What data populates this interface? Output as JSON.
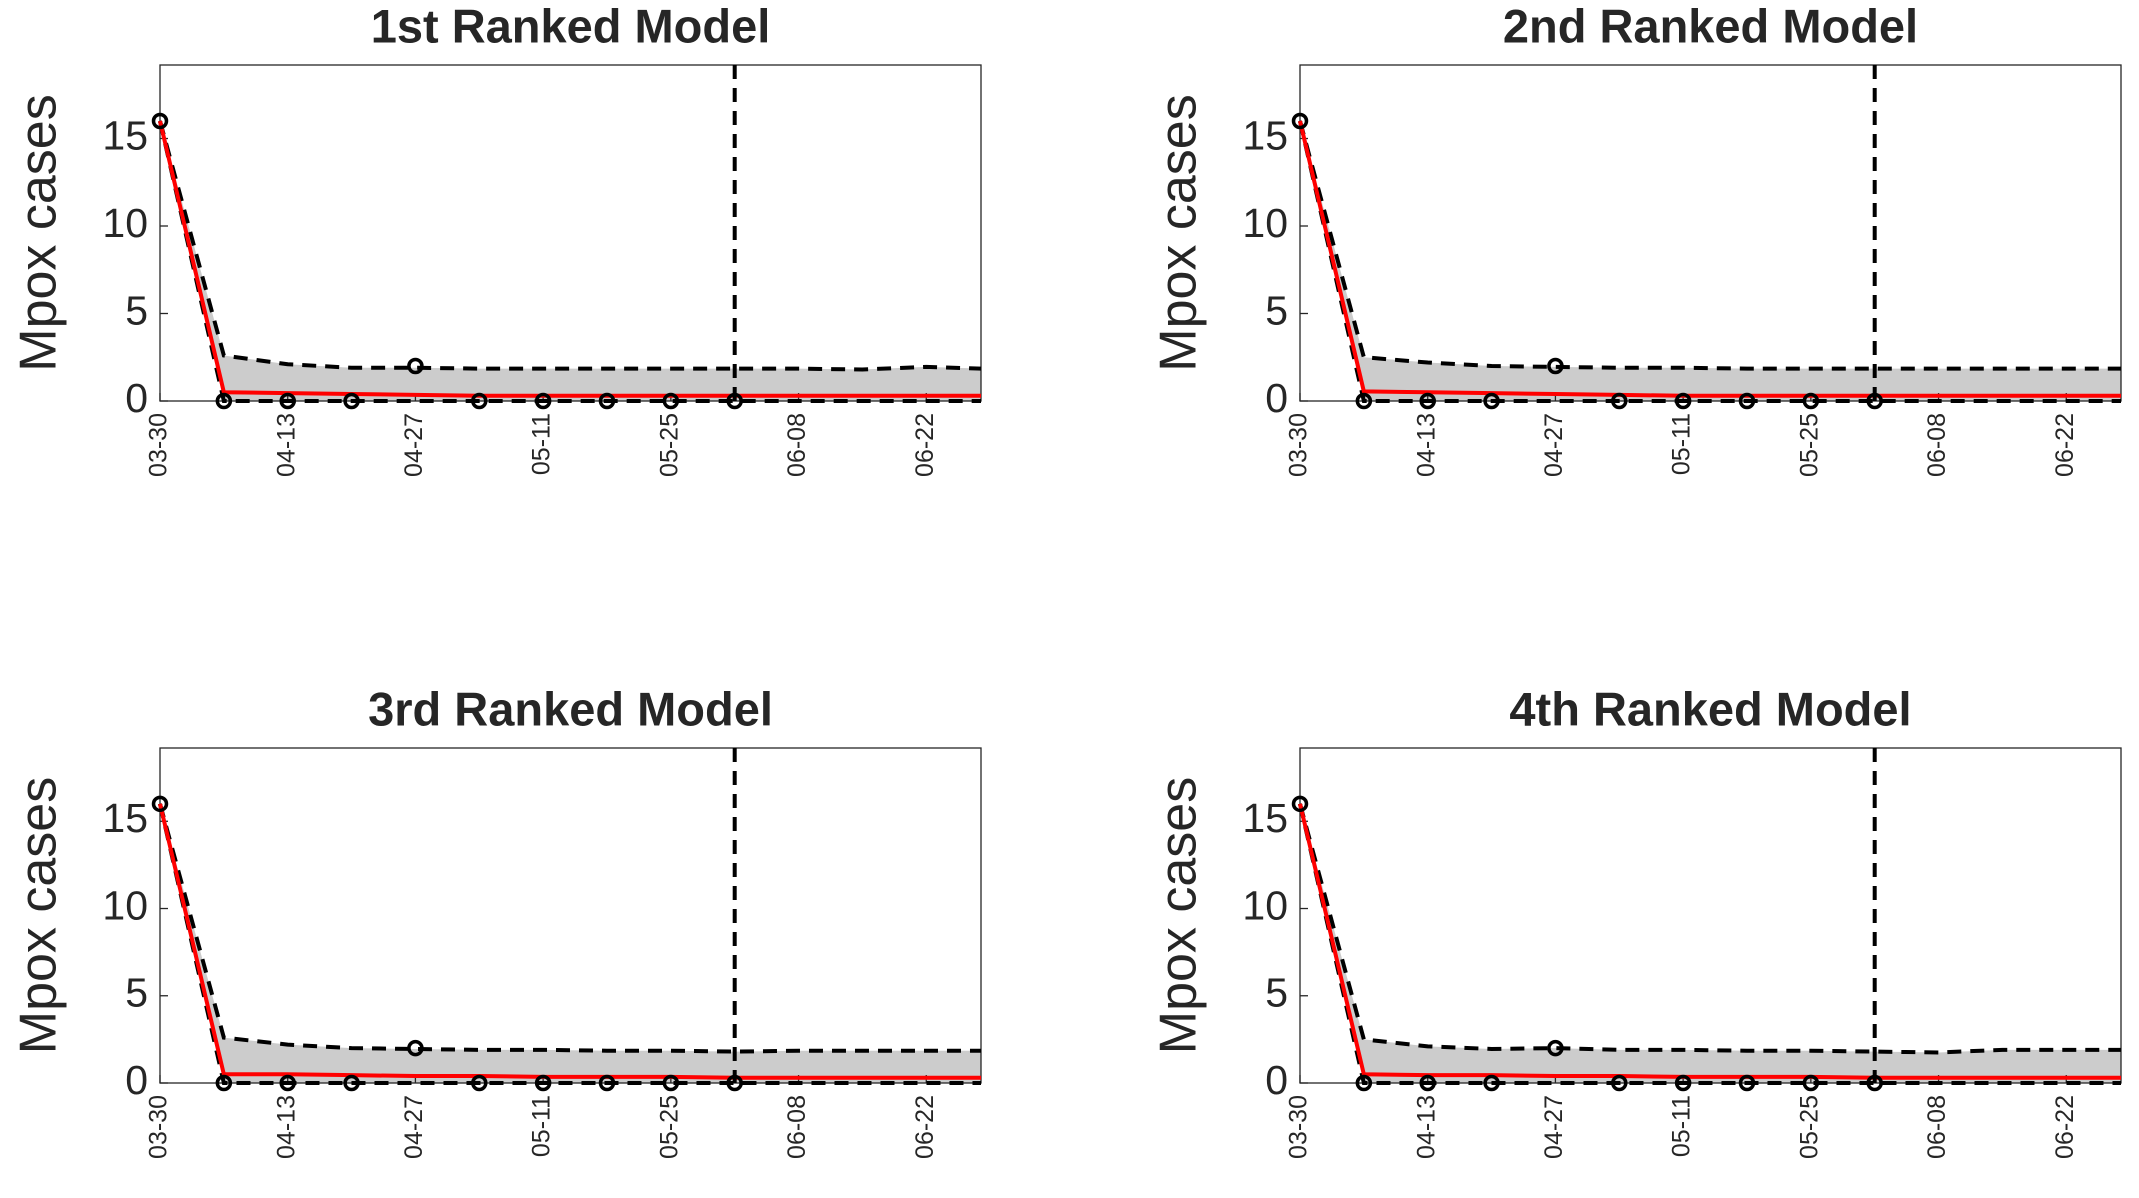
{
  "chart_data": [
    {
      "type": "line",
      "title": "1st Ranked Model",
      "ylabel": "Mpox cases",
      "x": [
        "03-30",
        "04-06",
        "04-13",
        "04-20",
        "04-27",
        "05-04",
        "05-11",
        "05-18",
        "05-25",
        "06-01",
        "06-08",
        "06-15",
        "06-22",
        "06-28"
      ],
      "observed": {
        "color": "#000000",
        "values": [
          16,
          0,
          0,
          0,
          2,
          0,
          0,
          0,
          0,
          0,
          null,
          null,
          null,
          null
        ]
      },
      "fit": {
        "color": "#ff0000",
        "values": [
          16,
          0.5,
          0.45,
          0.4,
          0.35,
          0.3,
          0.3,
          0.3,
          0.3,
          0.3,
          0.3,
          0.3,
          0.3,
          0.3
        ]
      },
      "upper": {
        "color": "#000000",
        "values": [
          16,
          2.6,
          2.1,
          1.9,
          1.9,
          1.85,
          1.85,
          1.85,
          1.85,
          1.85,
          1.85,
          1.8,
          1.95,
          1.85
        ]
      },
      "lower": {
        "color": "#000000",
        "values": [
          16,
          0,
          0,
          0,
          0,
          0,
          0,
          0,
          0,
          0,
          0,
          0,
          0,
          0
        ]
      },
      "band_color": "#cccccc",
      "vline": "06-01",
      "xlim": [
        "03-30",
        "06-28"
      ],
      "xticks": [
        "03-30",
        "04-13",
        "04-27",
        "05-11",
        "05-25",
        "06-08",
        "06-22"
      ],
      "ylim": [
        0,
        19.2
      ],
      "yticks": [
        0,
        5,
        10,
        15
      ]
    },
    {
      "type": "line",
      "title": "2nd Ranked Model",
      "ylabel": "Mpox cases",
      "x": [
        "03-30",
        "04-06",
        "04-13",
        "04-20",
        "04-27",
        "05-04",
        "05-11",
        "05-18",
        "05-25",
        "06-01",
        "06-08",
        "06-15",
        "06-22",
        "06-28"
      ],
      "observed": {
        "color": "#000000",
        "values": [
          16,
          0,
          0,
          0,
          2,
          0,
          0,
          0,
          0,
          0,
          null,
          null,
          null,
          null
        ]
      },
      "fit": {
        "color": "#ff0000",
        "values": [
          16,
          0.55,
          0.5,
          0.45,
          0.4,
          0.35,
          0.3,
          0.3,
          0.3,
          0.3,
          0.3,
          0.3,
          0.3,
          0.3
        ]
      },
      "upper": {
        "color": "#000000",
        "values": [
          16,
          2.5,
          2.2,
          2.0,
          1.95,
          1.9,
          1.9,
          1.85,
          1.85,
          1.85,
          1.85,
          1.85,
          1.85,
          1.85
        ]
      },
      "lower": {
        "color": "#000000",
        "values": [
          16,
          0,
          0,
          0,
          0,
          0,
          0,
          0,
          0,
          0,
          0,
          0,
          0,
          0
        ]
      },
      "band_color": "#cccccc",
      "vline": "06-01",
      "xlim": [
        "03-30",
        "06-28"
      ],
      "xticks": [
        "03-30",
        "04-13",
        "04-27",
        "05-11",
        "05-25",
        "06-08",
        "06-22"
      ],
      "ylim": [
        0,
        19.2
      ],
      "yticks": [
        0,
        5,
        10,
        15
      ]
    },
    {
      "type": "line",
      "title": "3rd Ranked Model",
      "ylabel": "Mpox cases",
      "x": [
        "03-30",
        "04-06",
        "04-13",
        "04-20",
        "04-27",
        "05-04",
        "05-11",
        "05-18",
        "05-25",
        "06-01",
        "06-08",
        "06-15",
        "06-22",
        "06-28"
      ],
      "observed": {
        "color": "#000000",
        "values": [
          16,
          0,
          0,
          0,
          2,
          0,
          0,
          0,
          0,
          0,
          null,
          null,
          null,
          null
        ]
      },
      "fit": {
        "color": "#ff0000",
        "values": [
          16,
          0.5,
          0.5,
          0.45,
          0.4,
          0.4,
          0.35,
          0.35,
          0.35,
          0.3,
          0.3,
          0.3,
          0.3,
          0.3
        ]
      },
      "upper": {
        "color": "#000000",
        "values": [
          16,
          2.6,
          2.2,
          2.0,
          1.95,
          1.9,
          1.9,
          1.85,
          1.85,
          1.8,
          1.85,
          1.85,
          1.85,
          1.85
        ]
      },
      "lower": {
        "color": "#000000",
        "values": [
          16,
          0,
          0,
          0,
          0,
          0,
          0,
          0,
          0,
          0,
          0,
          0,
          0,
          0
        ]
      },
      "band_color": "#cccccc",
      "vline": "06-01",
      "xlim": [
        "03-30",
        "06-28"
      ],
      "xticks": [
        "03-30",
        "04-13",
        "04-27",
        "05-11",
        "05-25",
        "06-08",
        "06-22"
      ],
      "ylim": [
        0,
        19.2
      ],
      "yticks": [
        0,
        5,
        10,
        15
      ]
    },
    {
      "type": "line",
      "title": "4th Ranked Model",
      "ylabel": "Mpox cases",
      "x": [
        "03-30",
        "04-06",
        "04-13",
        "04-20",
        "04-27",
        "05-04",
        "05-11",
        "05-18",
        "05-25",
        "06-01",
        "06-08",
        "06-15",
        "06-22",
        "06-28"
      ],
      "observed": {
        "color": "#000000",
        "values": [
          16,
          0,
          0,
          0,
          2,
          0,
          0,
          0,
          0,
          0,
          null,
          null,
          null,
          null
        ]
      },
      "fit": {
        "color": "#ff0000",
        "values": [
          16,
          0.5,
          0.45,
          0.45,
          0.4,
          0.4,
          0.35,
          0.35,
          0.35,
          0.3,
          0.3,
          0.3,
          0.3,
          0.3
        ]
      },
      "upper": {
        "color": "#000000",
        "values": [
          16,
          2.5,
          2.1,
          1.95,
          2.0,
          1.9,
          1.9,
          1.85,
          1.85,
          1.8,
          1.75,
          1.9,
          1.9,
          1.9
        ]
      },
      "lower": {
        "color": "#000000",
        "values": [
          16,
          0,
          0,
          0,
          0,
          0,
          0,
          0,
          0,
          0,
          0,
          0,
          0,
          0
        ]
      },
      "band_color": "#cccccc",
      "vline": "06-01",
      "xlim": [
        "03-30",
        "06-28"
      ],
      "xticks": [
        "03-30",
        "04-13",
        "04-27",
        "05-11",
        "05-25",
        "06-08",
        "06-22"
      ],
      "ylim": [
        0,
        19.2
      ],
      "yticks": [
        0,
        5,
        10,
        15
      ]
    }
  ]
}
